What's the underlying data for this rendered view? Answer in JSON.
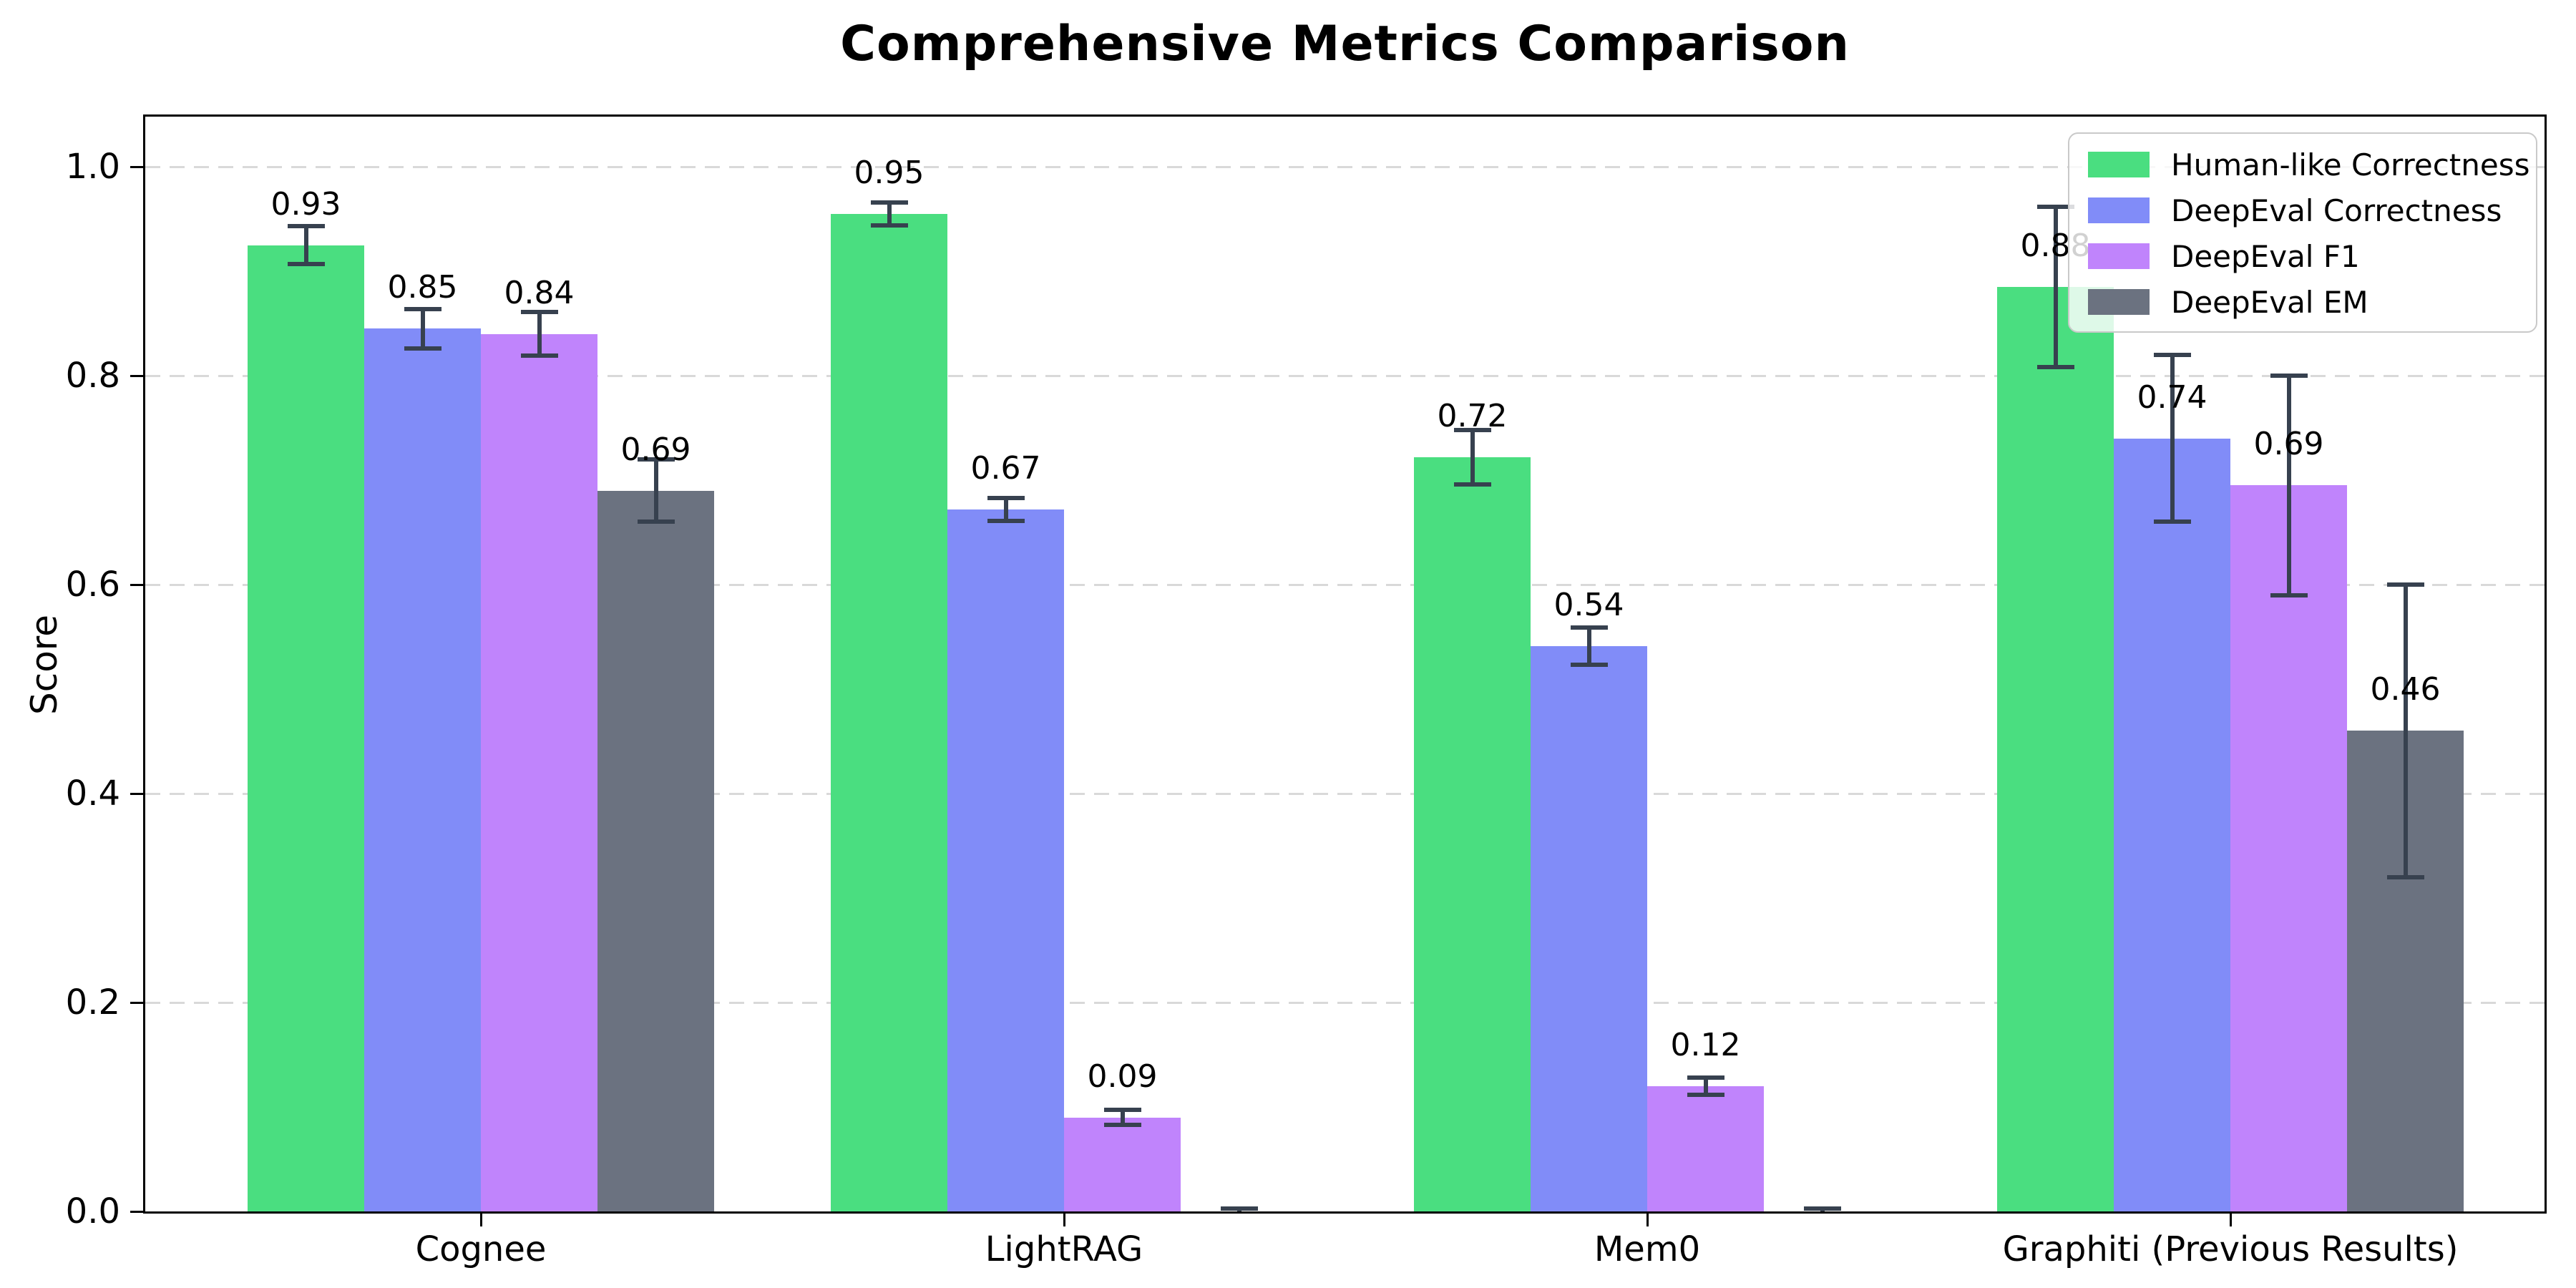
{
  "chart_data": {
    "type": "bar",
    "title": "Comprehensive Metrics Comparison",
    "xlabel": "",
    "ylabel": "Score",
    "categories": [
      "Cognee",
      "LightRAG",
      "Mem0",
      "Graphiti (Previous Results)"
    ],
    "series": [
      {
        "name": "Human-like Correctness",
        "color": "#4ade80",
        "values": [
          0.925,
          0.955,
          0.722,
          0.885
        ],
        "errors": [
          0.018,
          0.011,
          0.026,
          0.077
        ],
        "labels": [
          "0.93",
          "0.95",
          "0.72",
          "0.88"
        ]
      },
      {
        "name": "DeepEval Correctness",
        "color": "#818cf8",
        "values": [
          0.845,
          0.672,
          0.541,
          0.74
        ],
        "errors": [
          0.019,
          0.011,
          0.018,
          0.08
        ],
        "labels": [
          "0.85",
          "0.67",
          "0.54",
          "0.74"
        ]
      },
      {
        "name": "DeepEval F1",
        "color": "#c084fc",
        "values": [
          0.84,
          0.09,
          0.12,
          0.695
        ],
        "errors": [
          0.021,
          0.007,
          0.008,
          0.105
        ],
        "labels": [
          "0.84",
          "0.09",
          "0.12",
          "0.69"
        ]
      },
      {
        "name": "DeepEval EM",
        "color": "#6b7280",
        "values": [
          0.69,
          0.0,
          0.0,
          0.46
        ],
        "errors": [
          0.03,
          0.003,
          0.003,
          0.14
        ],
        "labels": [
          "0.69",
          "",
          "",
          "0.46"
        ]
      }
    ],
    "yticks": [
      "0.0",
      "0.2",
      "0.4",
      "0.6",
      "0.8",
      "1.0"
    ],
    "ylim": [
      0,
      1.048
    ],
    "grid": "horizontal-dashed",
    "legend_position": "upper right",
    "error_bar_color": "#37414f"
  }
}
